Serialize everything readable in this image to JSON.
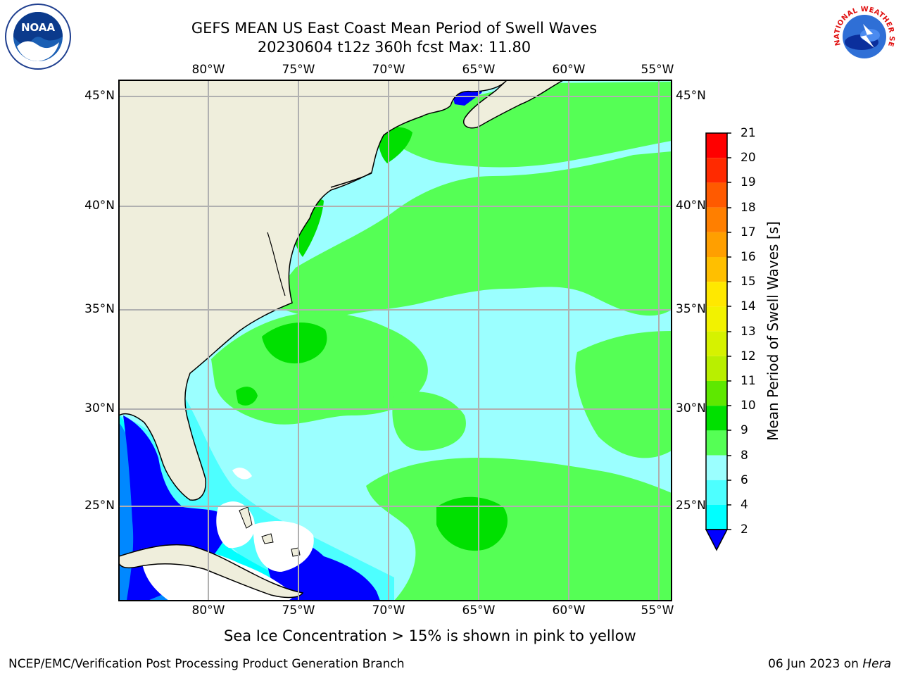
{
  "header": {
    "title_line1": "GEFS MEAN US East Coast Mean Period of Swell Waves",
    "title_line2": "20230604 t12z 360h fcst   Max: 11.80"
  },
  "map": {
    "lon_labels": [
      "80°W",
      "75°W",
      "70°W",
      "65°W",
      "60°W",
      "55°W"
    ],
    "lat_labels": [
      "45°N",
      "40°N",
      "35°N",
      "30°N",
      "25°N"
    ],
    "colors": {
      "land": "#efeedc",
      "ocean_base": "#9bffff",
      "grid": "#b0b0b0"
    }
  },
  "colorbar": {
    "title": "Mean Period of Swell Waves [s]",
    "ticks": [
      "21",
      "20",
      "19",
      "18",
      "17",
      "16",
      "15",
      "14",
      "13",
      "12",
      "11",
      "10",
      "9",
      "8",
      "6",
      "4",
      "2"
    ],
    "colors_top_to_bottom": [
      "#ff0000",
      "#ff2a00",
      "#ff5a00",
      "#ff7f00",
      "#ff9f00",
      "#ffbf00",
      "#ffe800",
      "#f2f200",
      "#d6f200",
      "#b9ef00",
      "#5ee800",
      "#00e000",
      "#55ff55",
      "#9bffff",
      "#4dffff",
      "#00ffff",
      "#0088ff"
    ],
    "under_color": "#0000ff"
  },
  "notes": {
    "sea_ice": "Sea Ice Concentration > 15% is shown in pink to yellow"
  },
  "footer": {
    "left": "NCEP/EMC/Verification Post Processing Product Generation Branch",
    "date": "06 Jun 2023 on ",
    "host": "Hera"
  },
  "logos": {
    "noaa": {
      "text": "NOAA",
      "icon": "noaa-logo-icon"
    },
    "nws": {
      "text": "NATIONAL WEATHER SERVICE",
      "icon": "nws-logo-icon"
    }
  }
}
